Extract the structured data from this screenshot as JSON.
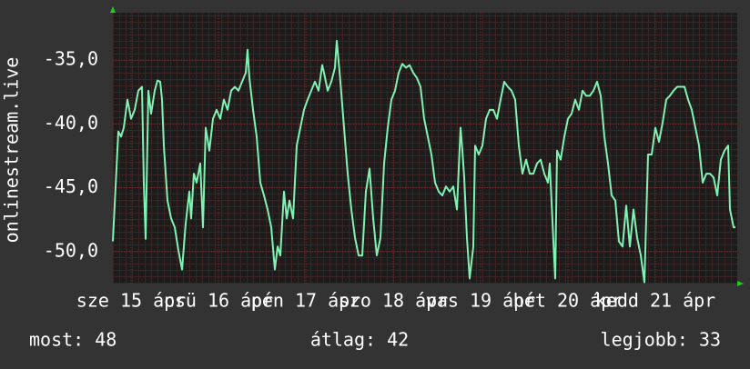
{
  "chart_data": {
    "type": "line",
    "y_label": "onlinestream.live",
    "xlim": [
      0,
      171.5
    ],
    "xticks": [
      {
        "value": 5,
        "label": "sze 15 ápr"
      },
      {
        "value": 29,
        "label": "csü 16 ápr"
      },
      {
        "value": 53,
        "label": "pén 17 ápr"
      },
      {
        "value": 77,
        "label": "szo 18 ápr"
      },
      {
        "value": 101,
        "label": "vas 19 ápr"
      },
      {
        "value": 125,
        "label": "hét 20 ápr"
      },
      {
        "value": 149,
        "label": "kedd 21 ápr"
      }
    ],
    "ylim": [
      -52.5,
      -31.3
    ],
    "yticks": [
      {
        "value": -35,
        "label": "-35,0"
      },
      {
        "value": -40,
        "label": "-40,0"
      },
      {
        "value": -45,
        "label": "-45,0"
      },
      {
        "value": -50,
        "label": "-50,0"
      }
    ],
    "grid": true,
    "x": [
      0,
      1,
      1.5,
      2.25,
      3,
      4,
      5,
      6,
      7,
      8,
      8.5,
      9,
      9.75,
      10.5,
      11.5,
      12.25,
      13,
      13.5,
      14,
      15,
      16,
      17,
      18,
      19,
      20,
      21,
      21.5,
      22.25,
      23,
      24,
      24.75,
      25.5,
      26.5,
      27.5,
      28.5,
      29.5,
      30.5,
      31.5,
      32.5,
      33.5,
      34.5,
      35.5,
      36.5,
      37,
      37.5,
      38.5,
      39.5,
      40.5,
      41.5,
      42.5,
      43.5,
      44.5,
      45.25,
      46,
      47,
      47.75,
      48.5,
      49.5,
      50.5,
      51.5,
      52.5,
      53.5,
      54.5,
      55.5,
      56.5,
      57.5,
      58,
      59,
      60,
      61,
      61.5,
      62.5,
      63.5,
      64.5,
      65.5,
      66.5,
      67.5,
      68.5,
      69.5,
      70.5,
      71.5,
      72.5,
      73.5,
      74.5,
      75.5,
      76.5,
      77.5,
      78.5,
      79.5,
      80.5,
      81.5,
      82.5,
      83.5,
      84.5,
      85.5,
      86.5,
      87.5,
      88.5,
      89.5,
      90.5,
      91.5,
      92.5,
      93.5,
      94.5,
      95.5,
      96,
      96.5,
      97.25,
      98,
      99,
      99.5,
      100.5,
      101.5,
      102.5,
      103.5,
      104.5,
      105.5,
      106.5,
      107.5,
      108.5,
      109.5,
      110.5,
      111.5,
      112.5,
      113.5,
      114.5,
      115.5,
      116.5,
      117.5,
      118.5,
      119.5,
      120,
      121,
      121.5,
      122,
      123,
      124,
      125,
      126,
      127,
      128,
      129,
      130,
      131,
      132,
      133,
      134,
      135,
      136,
      137,
      138,
      139,
      140,
      141,
      142,
      143,
      144,
      145,
      146,
      147,
      148,
      149,
      150,
      151,
      152,
      153,
      154,
      155,
      156,
      157,
      158,
      159,
      160,
      161,
      162,
      163,
      164,
      165,
      166,
      167,
      168,
      169,
      169.5,
      170.5,
      171
    ],
    "series": [
      {
        "name": "onlinestream.live",
        "color": "#80f2b4",
        "values": [
          -49.2,
          -43.5,
          -40.6,
          -41.0,
          -40.3,
          -38.1,
          -39.6,
          -38.9,
          -37.4,
          -37.1,
          -44.6,
          -49.0,
          -37.4,
          -39.2,
          -37.4,
          -36.6,
          -36.7,
          -38.1,
          -41.7,
          -46.0,
          -47.4,
          -48.1,
          -49.9,
          -51.4,
          -47.8,
          -45.3,
          -47.4,
          -43.9,
          -44.6,
          -43.1,
          -48.1,
          -40.3,
          -42.1,
          -39.6,
          -38.9,
          -39.6,
          -38.1,
          -38.9,
          -37.4,
          -37.1,
          -37.4,
          -36.7,
          -36.0,
          -34.2,
          -36.4,
          -38.9,
          -41.0,
          -44.6,
          -45.6,
          -46.7,
          -48.1,
          -51.4,
          -49.6,
          -50.3,
          -45.3,
          -47.4,
          -46.0,
          -47.4,
          -41.7,
          -40.3,
          -38.9,
          -38.1,
          -37.4,
          -36.7,
          -37.4,
          -35.4,
          -36.0,
          -37.4,
          -36.7,
          -35.6,
          -33.5,
          -36.7,
          -40.3,
          -43.9,
          -46.7,
          -48.9,
          -50.3,
          -50.3,
          -45.3,
          -43.5,
          -47.4,
          -50.3,
          -48.9,
          -43.1,
          -40.3,
          -38.1,
          -37.4,
          -36.0,
          -35.3,
          -35.6,
          -35.4,
          -36.0,
          -36.4,
          -37.1,
          -39.6,
          -41.0,
          -42.4,
          -44.6,
          -45.3,
          -45.6,
          -44.9,
          -45.3,
          -44.9,
          -46.7,
          -40.3,
          -42.1,
          -44.2,
          -48.9,
          -52.1,
          -49.6,
          -41.7,
          -42.4,
          -41.7,
          -39.6,
          -38.9,
          -38.9,
          -39.6,
          -38.1,
          -36.7,
          -37.1,
          -37.4,
          -38.1,
          -41.7,
          -43.9,
          -42.8,
          -43.9,
          -43.9,
          -43.1,
          -42.8,
          -43.9,
          -44.6,
          -43.1,
          -49.2,
          -52.1,
          -42.1,
          -42.8,
          -41.0,
          -39.6,
          -39.2,
          -38.1,
          -38.9,
          -37.4,
          -37.8,
          -37.8,
          -37.4,
          -36.7,
          -37.8,
          -41.0,
          -43.1,
          -45.6,
          -46.0,
          -49.2,
          -49.6,
          -46.4,
          -49.6,
          -46.7,
          -48.9,
          -50.3,
          -52.4,
          -42.4,
          -42.4,
          -40.3,
          -41.4,
          -39.9,
          -38.1,
          -37.8,
          -37.4,
          -37.1,
          -37.1,
          -37.1,
          -38.1,
          -38.9,
          -40.3,
          -41.7,
          -44.6,
          -43.9,
          -43.9,
          -44.2,
          -45.6,
          -42.8,
          -42.1,
          -41.7,
          -46.7,
          -48.1,
          -48.1
        ]
      }
    ],
    "footer": [
      "most: 48",
      "átlag: 42",
      "legjobb: 33"
    ]
  }
}
